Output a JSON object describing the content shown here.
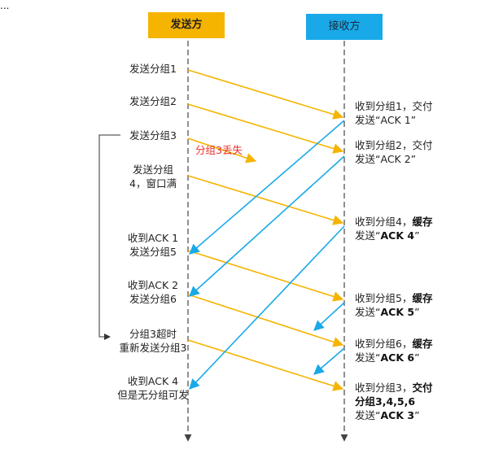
{
  "header_fragment": "...",
  "lanes": {
    "sender": "发送方",
    "receiver": "接收方"
  },
  "lost_label": "分组3丢失",
  "sender_notes": [
    {
      "lines": [
        "发送分组1"
      ]
    },
    {
      "lines": [
        "发送分组2"
      ]
    },
    {
      "lines": [
        "发送分组3"
      ]
    },
    {
      "lines": [
        "发送分组",
        "4，窗口满"
      ]
    },
    {
      "lines": [
        "收到ACK 1",
        "发送分组5"
      ]
    },
    {
      "lines": [
        "收到ACK 2",
        "发送分组6"
      ]
    },
    {
      "lines": [
        "分组3超时",
        "重新发送分组3"
      ]
    },
    {
      "lines": [
        "收到ACK 4",
        "但是无分组可发"
      ]
    }
  ],
  "receiver_notes": [
    {
      "l1a": "收到分组1，交付",
      "l1b": "",
      "l2a": "发送“",
      "l2b": "ACK 1",
      "l2c": "”",
      "bold": false
    },
    {
      "l1a": "收到分组2，交付",
      "l1b": "",
      "l2a": "发送“",
      "l2b": "ACK 2",
      "l2c": "”",
      "bold": false
    },
    {
      "l1a": "收到分组4，",
      "l1b": "缓存",
      "l2a": "发送“",
      "l2b": "ACK 4",
      "l2c": "”",
      "bold": true
    },
    {
      "l1a": "收到分组5，",
      "l1b": "缓存",
      "l2a": "发送“",
      "l2b": "ACK 5",
      "l2c": "”",
      "bold": true
    },
    {
      "l1a": "收到分组6，",
      "l1b": "缓存",
      "l2a": "发送“",
      "l2b": "ACK 6",
      "l2c": "”",
      "bold": true
    }
  ],
  "receiver_final": {
    "l1a": "收到分组3，",
    "l1b": "交付",
    "l2": "分组3,4,5,6",
    "l3a": "发送“",
    "l3b": "ACK 3",
    "l3c": "”"
  },
  "colors": {
    "sender_header": "#f5b400",
    "receiver_header": "#19a9e8",
    "data_arrow": "#f5b400",
    "ack_arrow": "#19a9e8",
    "lifeline": "#555555",
    "lost_text": "#e8302a"
  }
}
